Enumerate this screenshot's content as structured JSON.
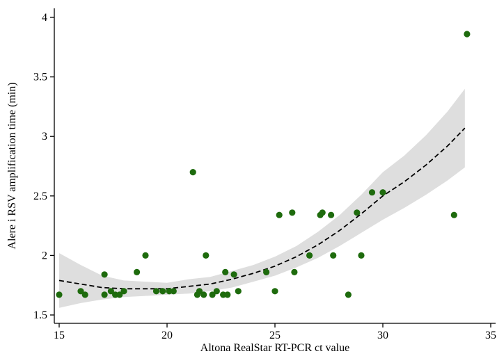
{
  "chart_data": {
    "type": "scatter",
    "title": "",
    "xlabel": "Altona RealStar RT-PCR ct value",
    "ylabel": "Alere i RSV amplification time (min)",
    "xlim": [
      15,
      35
    ],
    "ylim": [
      1.5,
      4
    ],
    "x_ticks": [
      15,
      20,
      25,
      30,
      35
    ],
    "y_ticks": [
      1.5,
      2,
      2.5,
      3,
      3.5,
      4
    ],
    "x_tick_labels": [
      "15",
      "20",
      "25",
      "30",
      "35"
    ],
    "y_tick_labels": [
      "1.5",
      "2",
      "2.5",
      "3",
      "3.5",
      "4"
    ],
    "grid": false,
    "colors": {
      "points": "#1e6b0d",
      "fit_line": "#000000",
      "confidence_band": "#dedede",
      "axes": "#000000"
    },
    "series": [
      {
        "type": "scatter",
        "x": [
          15.0,
          16.0,
          16.2,
          17.1,
          17.1,
          17.4,
          17.6,
          17.8,
          18.0,
          18.6,
          19.0,
          19.5,
          19.8,
          20.1,
          20.3,
          21.2,
          21.4,
          21.5,
          21.7,
          21.8,
          22.1,
          22.3,
          22.6,
          22.7,
          22.8,
          23.1,
          23.3,
          24.6,
          25.0,
          25.2,
          25.8,
          25.9,
          26.6,
          27.1,
          27.2,
          27.6,
          27.7,
          28.4,
          28.8,
          29.0,
          29.5,
          30.0,
          33.3,
          33.9
        ],
        "y": [
          1.67,
          1.7,
          1.67,
          1.84,
          1.67,
          1.7,
          1.67,
          1.67,
          1.7,
          1.86,
          2.0,
          1.7,
          1.7,
          1.7,
          1.7,
          2.7,
          1.67,
          1.7,
          1.67,
          2.0,
          1.67,
          1.7,
          1.67,
          1.86,
          1.67,
          1.84,
          1.7,
          1.86,
          1.7,
          2.34,
          2.36,
          1.86,
          2.0,
          2.34,
          2.36,
          2.34,
          2.0,
          1.67,
          2.36,
          2.0,
          2.53,
          2.53,
          2.34,
          3.86
        ]
      },
      {
        "type": "fit",
        "style": "dashed",
        "x": [
          15,
          16,
          17,
          18,
          19,
          20,
          21,
          22,
          23,
          24,
          25,
          26,
          27,
          28,
          29,
          30,
          31,
          32,
          33,
          33.8
        ],
        "y": [
          1.79,
          1.76,
          1.73,
          1.72,
          1.72,
          1.72,
          1.74,
          1.76,
          1.8,
          1.85,
          1.91,
          1.99,
          2.09,
          2.21,
          2.35,
          2.5,
          2.62,
          2.76,
          2.92,
          3.07
        ],
        "ci_lower": [
          1.56,
          1.6,
          1.63,
          1.65,
          1.66,
          1.67,
          1.68,
          1.7,
          1.73,
          1.78,
          1.83,
          1.9,
          1.98,
          2.08,
          2.19,
          2.3,
          2.4,
          2.51,
          2.63,
          2.74
        ],
        "ci_upper": [
          2.02,
          1.92,
          1.83,
          1.79,
          1.78,
          1.77,
          1.8,
          1.82,
          1.87,
          1.92,
          1.99,
          2.08,
          2.2,
          2.34,
          2.51,
          2.7,
          2.84,
          3.01,
          3.21,
          3.4
        ]
      }
    ]
  }
}
